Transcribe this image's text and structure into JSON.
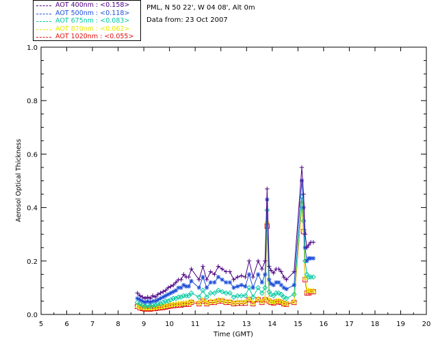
{
  "legend": [
    {
      "label": "AOT  400nm : <0.158>",
      "color": "#4b0082"
    },
    {
      "label": "AOT  500nm : <0.118>",
      "color": "#1e4fd8"
    },
    {
      "label": "AOT  675nm : <0.083>",
      "color": "#00c8a0"
    },
    {
      "label": "AOT  870nm : <0.062>",
      "color": "#e8e800"
    },
    {
      "label": "AOT 1020nm : <0.055>",
      "color": "#e01010"
    }
  ],
  "info": {
    "site": "PML, N 50 22', W 04 08', Alt 0m",
    "date": "Data from: 23 Oct 2007"
  },
  "chart_data": {
    "type": "line",
    "title": "",
    "xlabel": "Time (GMT)",
    "ylabel": "Aerosol Optical Thickness",
    "xlim": [
      5,
      20
    ],
    "ylim": [
      0.0,
      1.0
    ],
    "xticks": [
      5,
      6,
      7,
      8,
      9,
      10,
      11,
      12,
      13,
      14,
      15,
      16,
      17,
      18,
      19,
      20
    ],
    "yticks": [
      "0.0",
      "0.2",
      "0.4",
      "0.6",
      "0.8",
      "1.0"
    ],
    "x": [
      8.75,
      8.85,
      8.95,
      9.05,
      9.15,
      9.25,
      9.35,
      9.45,
      9.55,
      9.65,
      9.75,
      9.85,
      9.95,
      10.05,
      10.15,
      10.25,
      10.35,
      10.45,
      10.55,
      10.65,
      10.75,
      10.85,
      11.15,
      11.3,
      11.45,
      11.6,
      11.75,
      11.9,
      12.05,
      12.2,
      12.35,
      12.5,
      12.65,
      12.8,
      12.95,
      13.1,
      13.25,
      13.45,
      13.6,
      13.72,
      13.8,
      13.88,
      13.95,
      14.05,
      14.15,
      14.25,
      14.35,
      14.45,
      14.55,
      14.85,
      15.15,
      15.22,
      15.28,
      15.35,
      15.42,
      15.5,
      15.6
    ],
    "series": [
      {
        "name": "AOT 400nm",
        "color": "#4b0082",
        "marker": "plus",
        "values": [
          0.08,
          0.07,
          0.065,
          0.06,
          0.065,
          0.06,
          0.07,
          0.065,
          0.075,
          0.08,
          0.085,
          0.09,
          0.1,
          0.105,
          0.11,
          0.12,
          0.13,
          0.13,
          0.15,
          0.14,
          0.14,
          0.17,
          0.13,
          0.18,
          0.13,
          0.16,
          0.15,
          0.18,
          0.17,
          0.16,
          0.16,
          0.13,
          0.14,
          0.145,
          0.14,
          0.2,
          0.14,
          0.2,
          0.17,
          0.2,
          0.47,
          0.18,
          0.165,
          0.155,
          0.17,
          0.17,
          0.16,
          0.14,
          0.13,
          0.16,
          0.55,
          0.45,
          0.3,
          0.25,
          0.26,
          0.27,
          0.27
        ]
      },
      {
        "name": "AOT 500nm",
        "color": "#1e4fd8",
        "marker": "asterisk",
        "values": [
          0.06,
          0.055,
          0.05,
          0.045,
          0.05,
          0.045,
          0.05,
          0.05,
          0.055,
          0.06,
          0.065,
          0.07,
          0.075,
          0.08,
          0.085,
          0.09,
          0.1,
          0.1,
          0.11,
          0.105,
          0.105,
          0.125,
          0.1,
          0.14,
          0.1,
          0.12,
          0.12,
          0.14,
          0.13,
          0.12,
          0.12,
          0.1,
          0.105,
          0.11,
          0.105,
          0.15,
          0.1,
          0.15,
          0.12,
          0.15,
          0.43,
          0.13,
          0.115,
          0.11,
          0.12,
          0.12,
          0.11,
          0.1,
          0.095,
          0.11,
          0.5,
          0.4,
          0.25,
          0.2,
          0.21,
          0.21,
          0.21
        ]
      },
      {
        "name": "AOT 675nm",
        "color": "#00c8a0",
        "marker": "diamond",
        "values": [
          0.045,
          0.04,
          0.035,
          0.03,
          0.035,
          0.03,
          0.035,
          0.035,
          0.04,
          0.04,
          0.045,
          0.05,
          0.05,
          0.055,
          0.06,
          0.06,
          0.065,
          0.065,
          0.07,
          0.07,
          0.07,
          0.08,
          0.065,
          0.09,
          0.065,
          0.08,
          0.08,
          0.09,
          0.085,
          0.08,
          0.08,
          0.065,
          0.07,
          0.07,
          0.07,
          0.1,
          0.065,
          0.1,
          0.08,
          0.1,
          0.39,
          0.085,
          0.075,
          0.07,
          0.08,
          0.08,
          0.075,
          0.065,
          0.06,
          0.075,
          0.44,
          0.35,
          0.2,
          0.15,
          0.14,
          0.14,
          0.14
        ]
      },
      {
        "name": "AOT 870nm",
        "color": "#e8e800",
        "marker": "triangle",
        "values": [
          0.035,
          0.03,
          0.028,
          0.025,
          0.027,
          0.025,
          0.027,
          0.027,
          0.03,
          0.03,
          0.032,
          0.035,
          0.035,
          0.038,
          0.04,
          0.04,
          0.042,
          0.042,
          0.045,
          0.045,
          0.045,
          0.05,
          0.045,
          0.055,
          0.045,
          0.05,
          0.05,
          0.055,
          0.055,
          0.05,
          0.05,
          0.045,
          0.048,
          0.048,
          0.048,
          0.06,
          0.045,
          0.06,
          0.05,
          0.06,
          0.35,
          0.055,
          0.05,
          0.048,
          0.052,
          0.052,
          0.05,
          0.045,
          0.042,
          0.05,
          0.42,
          0.32,
          0.14,
          0.09,
          0.09,
          0.09,
          0.09
        ]
      },
      {
        "name": "AOT 1020nm",
        "color": "#e01010",
        "marker": "square",
        "values": [
          0.03,
          0.025,
          0.022,
          0.02,
          0.022,
          0.02,
          0.022,
          0.022,
          0.024,
          0.025,
          0.026,
          0.028,
          0.03,
          0.032,
          0.033,
          0.034,
          0.035,
          0.035,
          0.038,
          0.038,
          0.038,
          0.045,
          0.04,
          0.05,
          0.04,
          0.045,
          0.045,
          0.05,
          0.05,
          0.045,
          0.045,
          0.04,
          0.042,
          0.042,
          0.042,
          0.055,
          0.04,
          0.055,
          0.045,
          0.055,
          0.33,
          0.05,
          0.045,
          0.043,
          0.047,
          0.047,
          0.045,
          0.04,
          0.038,
          0.045,
          0.41,
          0.31,
          0.13,
          0.08,
          0.08,
          0.085,
          0.085
        ]
      }
    ]
  }
}
